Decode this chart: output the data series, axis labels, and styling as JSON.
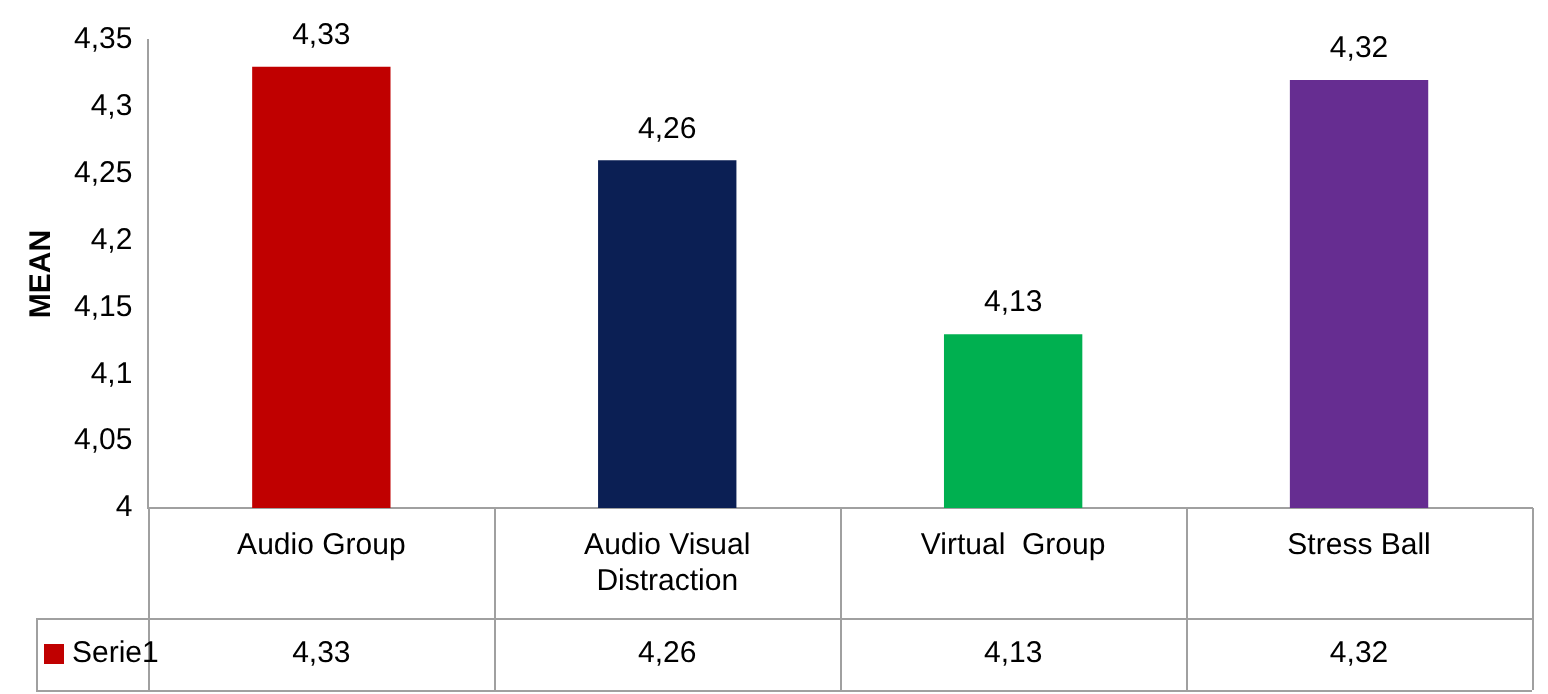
{
  "chart_data": {
    "type": "bar",
    "ylabel": "MEAN",
    "categories": [
      "Audio Group",
      "Audio Visual Distraction",
      "Virtual  Group",
      "Stress Ball"
    ],
    "series": [
      {
        "name": "Serie1",
        "color": "#c00000",
        "colors": [
          "#c00000",
          "#0b1f54",
          "#00b050",
          "#662d91"
        ],
        "values": [
          4.33,
          4.26,
          4.13,
          4.32
        ],
        "value_labels": [
          "4,33",
          "4,26",
          "4,13",
          "4,32"
        ]
      }
    ],
    "ylim": [
      4,
      4.35
    ],
    "yticks": [
      {
        "value": 4,
        "label": "4"
      },
      {
        "value": 4.05,
        "label": "4,05"
      },
      {
        "value": 4.1,
        "label": "4,1"
      },
      {
        "value": 4.15,
        "label": "4,15"
      },
      {
        "value": 4.2,
        "label": "4,2"
      },
      {
        "value": 4.25,
        "label": "4,25"
      },
      {
        "value": 4.3,
        "label": "4,3"
      },
      {
        "value": 4.35,
        "label": "4,35"
      }
    ],
    "grid": false,
    "legend": "bottom left"
  }
}
